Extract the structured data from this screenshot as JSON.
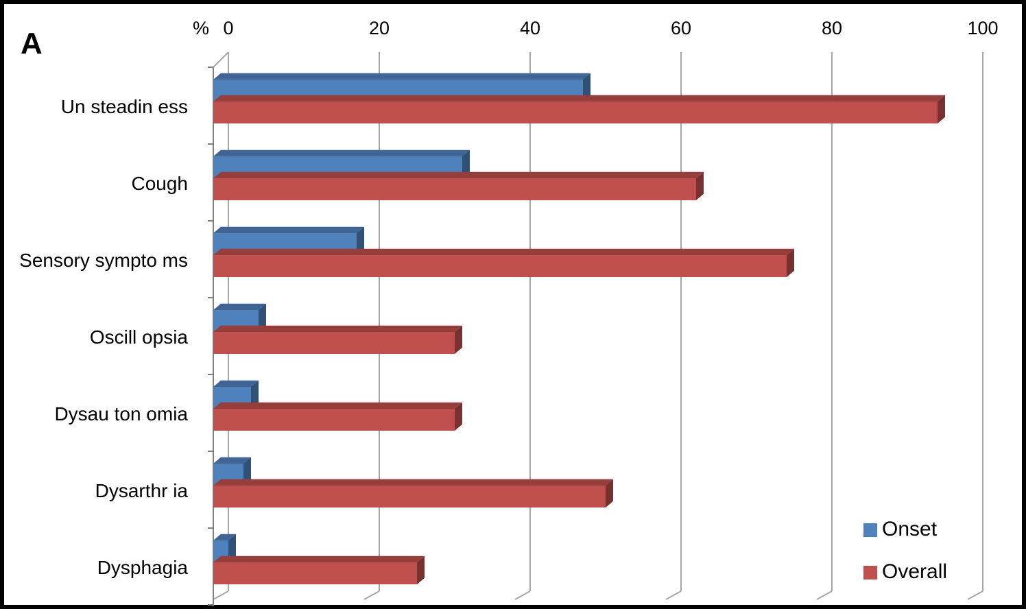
{
  "panel_letter": "A",
  "chart_data": {
    "type": "bar",
    "orientation": "horizontal",
    "style": "3d",
    "title": "",
    "xlabel": "%",
    "ylabel": "",
    "xlim": [
      0,
      100
    ],
    "x_ticks": [
      "0",
      "20",
      "40",
      "60",
      "80",
      "100"
    ],
    "x_tick_values": [
      0,
      20,
      40,
      60,
      80,
      100
    ],
    "axis_position": "top",
    "grid": true,
    "categories": [
      "Unsteadiness",
      "Cough",
      "Sensory symptoms",
      "Oscillopsia",
      "Dysautonomia",
      "Dysarthria",
      "Dysphagia"
    ],
    "category_labels": [
      "Un steadin ess",
      "Cough",
      "Sensory sympto ms",
      "Oscill opsia",
      "Dysau ton omia",
      "Dysarthr ia",
      "Dysphagia"
    ],
    "series": [
      {
        "name": "Onset",
        "color": "#4f81bd",
        "values": [
          49,
          33,
          19,
          6,
          5,
          4,
          2
        ]
      },
      {
        "name": "Overall",
        "color": "#c0504d",
        "values": [
          96,
          64,
          76,
          32,
          32,
          52,
          27
        ]
      }
    ],
    "legend": {
      "position": "bottom-right",
      "labels": [
        "Onset",
        "Overall"
      ]
    }
  }
}
